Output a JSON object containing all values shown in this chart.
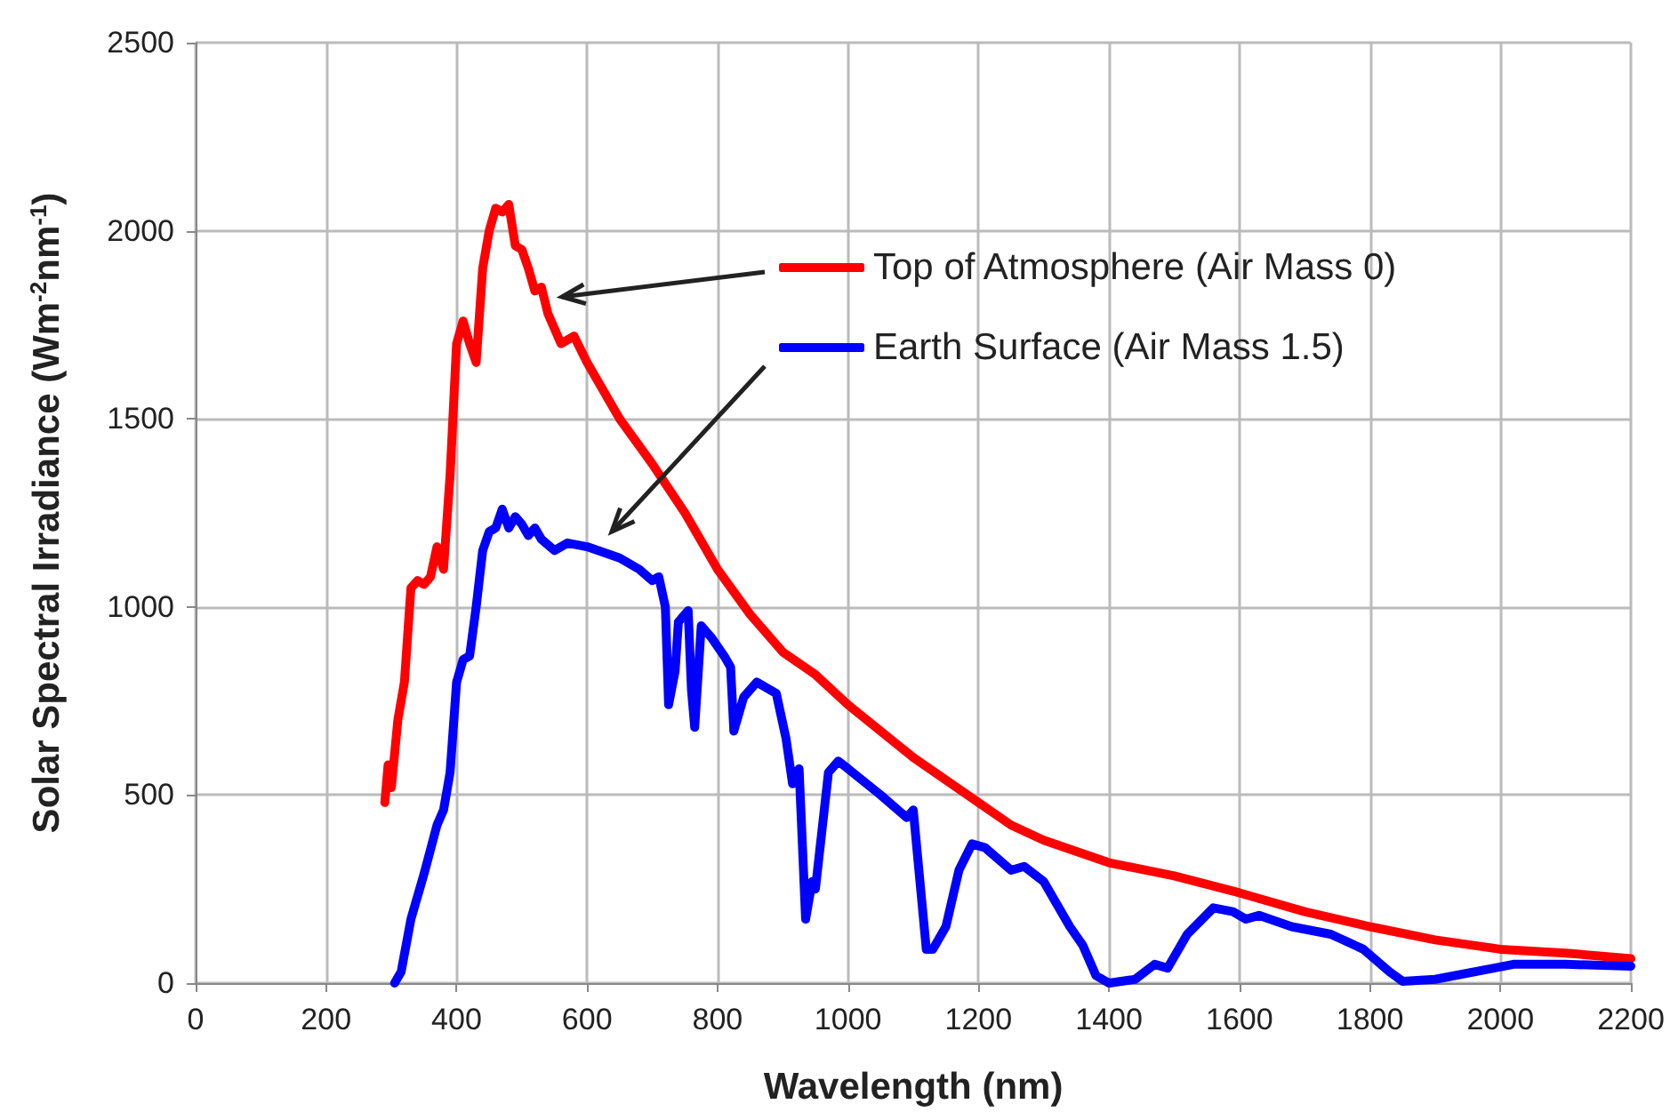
{
  "chart_data": {
    "type": "line",
    "xlabel": "Wavelength (nm)",
    "ylabel": "Solar Spectral Irradiance (Wm$^{-2}$nm$^{-1}$)",
    "xlim": [
      0,
      2200
    ],
    "xticks": [
      0,
      200,
      400,
      600,
      800,
      1000,
      1200,
      1400,
      1600,
      1800,
      2000,
      2200
    ],
    "ylim": [
      0,
      2500
    ],
    "yticks": [
      0,
      500,
      1000,
      1500,
      2000,
      2500
    ],
    "grid": true,
    "legend": "top right",
    "marker": "none",
    "line_style": "solid",
    "series": [
      {
        "name": "Top of Atmosphere (Air Mass 0)",
        "color": "#ff0000",
        "x": [
          290,
          295,
          300,
          310,
          320,
          330,
          340,
          350,
          360,
          370,
          380,
          390,
          400,
          410,
          420,
          430,
          440,
          450,
          460,
          470,
          480,
          490,
          500,
          510,
          520,
          530,
          540,
          560,
          580,
          600,
          650,
          700,
          750,
          800,
          850,
          900,
          950,
          1000,
          1100,
          1200,
          1250,
          1300,
          1400,
          1500,
          1600,
          1700,
          1800,
          1900,
          2000,
          2100,
          2200
        ],
        "values": [
          480,
          580,
          520,
          700,
          800,
          1050,
          1070,
          1060,
          1080,
          1160,
          1100,
          1350,
          1700,
          1760,
          1700,
          1650,
          1900,
          2000,
          2060,
          2050,
          2070,
          1960,
          1950,
          1900,
          1840,
          1850,
          1780,
          1700,
          1720,
          1650,
          1500,
          1380,
          1250,
          1100,
          980,
          880,
          820,
          740,
          600,
          480,
          420,
          380,
          320,
          285,
          240,
          190,
          150,
          115,
          90,
          80,
          65
        ]
      },
      {
        "name": "Earth Surface (Air Mass 1.5)",
        "color": "#0000ff",
        "x": [
          305,
          315,
          330,
          350,
          370,
          380,
          390,
          400,
          410,
          420,
          430,
          440,
          450,
          460,
          470,
          480,
          490,
          500,
          510,
          520,
          530,
          550,
          570,
          600,
          650,
          680,
          700,
          710,
          720,
          725,
          735,
          740,
          755,
          760,
          765,
          775,
          790,
          810,
          820,
          825,
          840,
          860,
          890,
          905,
          915,
          925,
          935,
          945,
          950,
          970,
          985,
          1000,
          1050,
          1090,
          1100,
          1120,
          1130,
          1150,
          1170,
          1190,
          1210,
          1250,
          1270,
          1300,
          1340,
          1360,
          1380,
          1400,
          1440,
          1470,
          1490,
          1520,
          1560,
          1590,
          1610,
          1630,
          1680,
          1740,
          1790,
          1830,
          1850,
          1900,
          1990,
          2020,
          2100,
          2200
        ],
        "values": [
          0,
          30,
          170,
          290,
          420,
          460,
          560,
          800,
          860,
          870,
          1000,
          1150,
          1200,
          1210,
          1260,
          1210,
          1240,
          1220,
          1190,
          1210,
          1180,
          1150,
          1170,
          1160,
          1130,
          1100,
          1070,
          1080,
          1000,
          740,
          830,
          960,
          990,
          780,
          680,
          950,
          920,
          870,
          840,
          670,
          760,
          800,
          770,
          650,
          530,
          570,
          170,
          270,
          250,
          560,
          590,
          570,
          500,
          440,
          460,
          90,
          90,
          150,
          300,
          370,
          360,
          300,
          310,
          270,
          150,
          100,
          20,
          0,
          10,
          50,
          40,
          130,
          200,
          190,
          170,
          180,
          150,
          130,
          90,
          30,
          5,
          10,
          40,
          50,
          50,
          45
        ]
      }
    ]
  }
}
